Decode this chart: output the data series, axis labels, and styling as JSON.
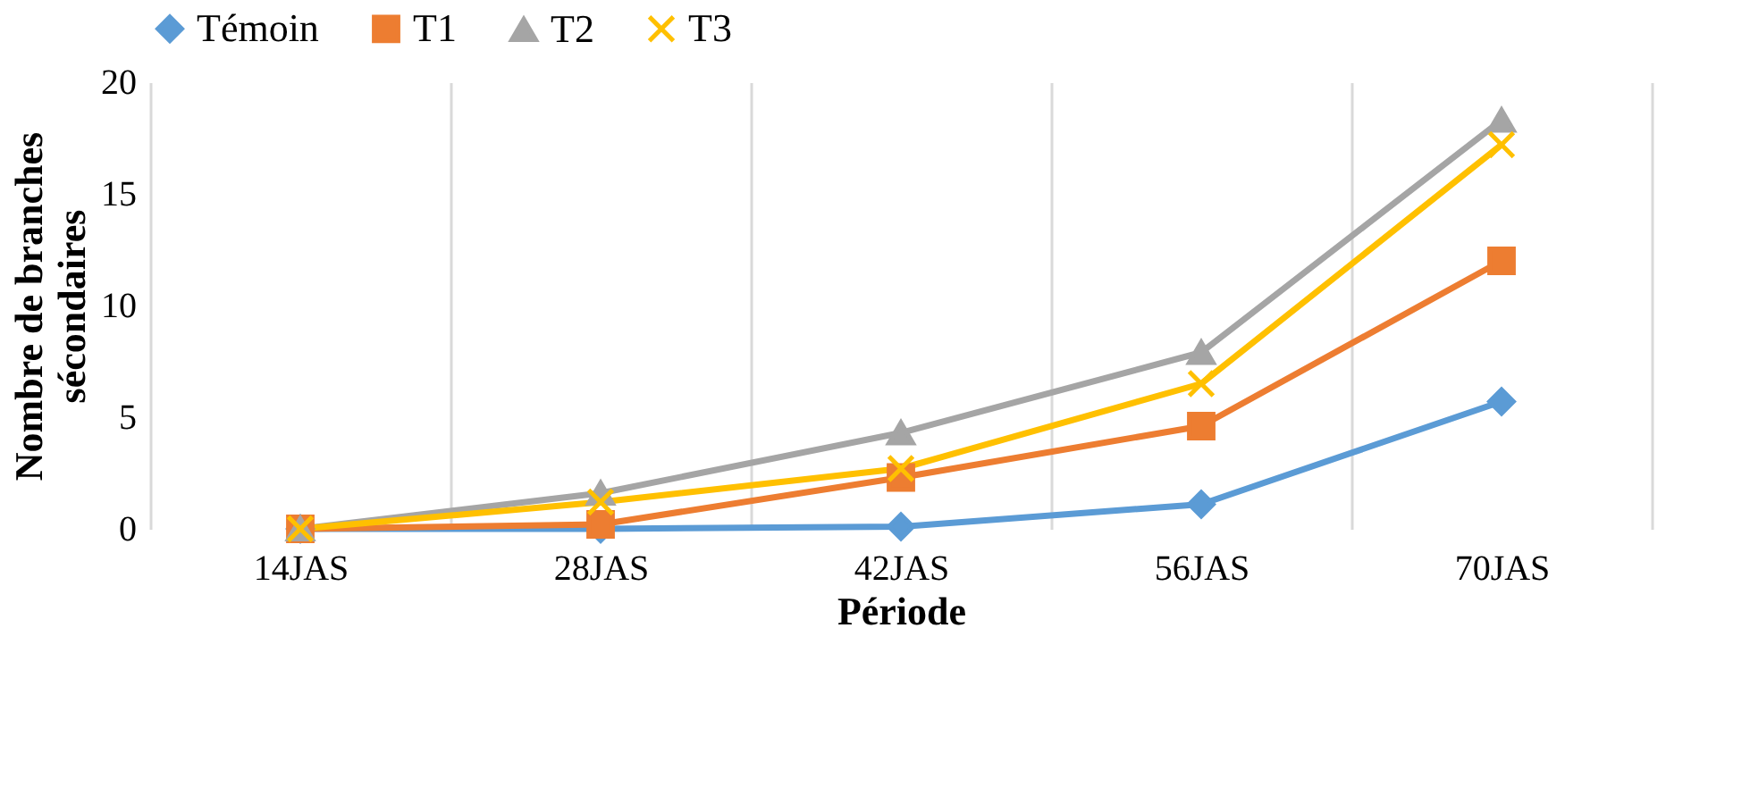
{
  "chart_data": {
    "type": "line",
    "xlabel": "Période",
    "ylabel": "Nombre de branches sécondaires",
    "categories": [
      "14JAS",
      "28JAS",
      "42JAS",
      "56JAS",
      "70JAS"
    ],
    "series": [
      {
        "name": "Témoin",
        "color": "#5b9bd5",
        "marker": "diamond",
        "values": [
          0,
          0,
          0.1,
          1.1,
          5.7
        ]
      },
      {
        "name": "T1",
        "color": "#ed7d31",
        "marker": "square",
        "values": [
          0,
          0.2,
          2.3,
          4.6,
          12
        ]
      },
      {
        "name": "T2",
        "color": "#a5a5a5",
        "marker": "triangle",
        "values": [
          0,
          1.6,
          4.3,
          7.9,
          18.3
        ]
      },
      {
        "name": "T3",
        "color": "#ffc000",
        "marker": "cross",
        "values": [
          0,
          1.2,
          2.7,
          6.5,
          17.2
        ]
      }
    ],
    "ylim": [
      0,
      20
    ],
    "yticks": [
      0,
      5,
      10,
      15,
      20
    ],
    "grid": "x",
    "legend": "top",
    "line_style": "solid"
  }
}
